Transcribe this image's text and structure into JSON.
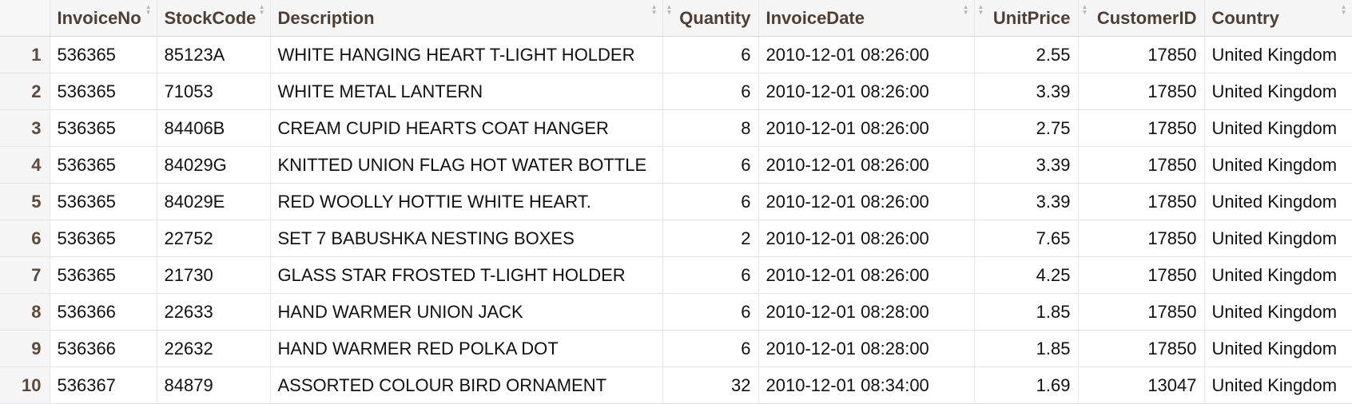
{
  "columns": [
    {
      "key": "InvoiceNo",
      "label": "InvoiceNo"
    },
    {
      "key": "StockCode",
      "label": "StockCode"
    },
    {
      "key": "Description",
      "label": "Description"
    },
    {
      "key": "Quantity",
      "label": "Quantity"
    },
    {
      "key": "InvoiceDate",
      "label": "InvoiceDate"
    },
    {
      "key": "UnitPrice",
      "label": "UnitPrice"
    },
    {
      "key": "CustomerID",
      "label": "CustomerID"
    },
    {
      "key": "Country",
      "label": "Country"
    }
  ],
  "rows": [
    {
      "idx": "1",
      "cells": [
        "536365",
        "85123A",
        "WHITE HANGING HEART T-LIGHT HOLDER",
        "6",
        "2010-12-01 08:26:00",
        "2.55",
        "17850",
        "United Kingdom"
      ]
    },
    {
      "idx": "2",
      "cells": [
        "536365",
        "71053",
        "WHITE METAL LANTERN",
        "6",
        "2010-12-01 08:26:00",
        "3.39",
        "17850",
        "United Kingdom"
      ]
    },
    {
      "idx": "3",
      "cells": [
        "536365",
        "84406B",
        "CREAM CUPID HEARTS COAT HANGER",
        "8",
        "2010-12-01 08:26:00",
        "2.75",
        "17850",
        "United Kingdom"
      ]
    },
    {
      "idx": "4",
      "cells": [
        "536365",
        "84029G",
        "KNITTED UNION FLAG HOT WATER BOTTLE",
        "6",
        "2010-12-01 08:26:00",
        "3.39",
        "17850",
        "United Kingdom"
      ]
    },
    {
      "idx": "5",
      "cells": [
        "536365",
        "84029E",
        "RED WOOLLY HOTTIE WHITE HEART.",
        "6",
        "2010-12-01 08:26:00",
        "3.39",
        "17850",
        "United Kingdom"
      ]
    },
    {
      "idx": "6",
      "cells": [
        "536365",
        "22752",
        "SET 7 BABUSHKA NESTING BOXES",
        "2",
        "2010-12-01 08:26:00",
        "7.65",
        "17850",
        "United Kingdom"
      ]
    },
    {
      "idx": "7",
      "cells": [
        "536365",
        "21730",
        "GLASS STAR FROSTED T-LIGHT HOLDER",
        "6",
        "2010-12-01 08:26:00",
        "4.25",
        "17850",
        "United Kingdom"
      ]
    },
    {
      "idx": "8",
      "cells": [
        "536366",
        "22633",
        "HAND WARMER UNION JACK",
        "6",
        "2010-12-01 08:28:00",
        "1.85",
        "17850",
        "United Kingdom"
      ]
    },
    {
      "idx": "9",
      "cells": [
        "536366",
        "22632",
        "HAND WARMER RED POLKA DOT",
        "6",
        "2010-12-01 08:28:00",
        "1.85",
        "17850",
        "United Kingdom"
      ]
    },
    {
      "idx": "10",
      "cells": [
        "536367",
        "84879",
        "ASSORTED COLOUR BIRD ORNAMENT",
        "32",
        "2010-12-01 08:34:00",
        "1.69",
        "13047",
        "United Kingdom"
      ]
    }
  ],
  "icons": {
    "sort": "sort-arrows-icon"
  },
  "colors": {
    "header_text": "#4d3f33",
    "index_text": "#5c4a3a",
    "cell_text": "#111111",
    "grid_line": "#e3e3e8",
    "header_bg": "#f5f5f5"
  }
}
